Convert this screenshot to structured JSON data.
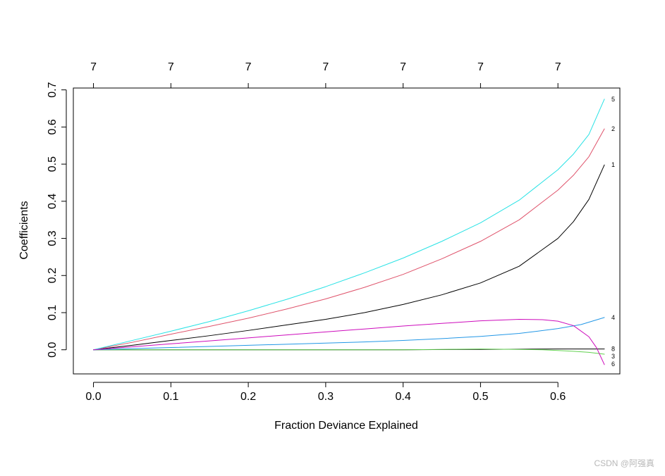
{
  "chart_data": {
    "type": "line",
    "title": "",
    "xlabel": "Fraction Deviance Explained",
    "ylabel": "Coefficients",
    "xlim": [
      -0.026,
      0.68
    ],
    "ylim": [
      -0.065,
      0.705
    ],
    "x_ticks": [
      0.0,
      0.1,
      0.2,
      0.3,
      0.4,
      0.5,
      0.6
    ],
    "x_tick_labels": [
      "0.0",
      "0.1",
      "0.2",
      "0.3",
      "0.4",
      "0.5",
      "0.6"
    ],
    "y_ticks": [
      0.0,
      0.1,
      0.2,
      0.3,
      0.4,
      0.5,
      0.6,
      0.7
    ],
    "y_tick_labels": [
      "0.0",
      "0.1",
      "0.2",
      "0.3",
      "0.4",
      "0.5",
      "0.6",
      "0.7"
    ],
    "top_axis": {
      "positions": [
        0.0,
        0.1,
        0.2,
        0.3,
        0.4,
        0.5,
        0.6
      ],
      "labels": [
        "7",
        "7",
        "7",
        "7",
        "7",
        "7",
        "7"
      ]
    },
    "grid": false,
    "series": [
      {
        "name": "1",
        "color": "#000000",
        "x": [
          0.0,
          0.05,
          0.1,
          0.15,
          0.2,
          0.25,
          0.3,
          0.35,
          0.4,
          0.45,
          0.5,
          0.55,
          0.6,
          0.62,
          0.64,
          0.66
        ],
        "values": [
          0.0,
          0.012,
          0.025,
          0.038,
          0.052,
          0.067,
          0.082,
          0.1,
          0.122,
          0.148,
          0.18,
          0.225,
          0.3,
          0.345,
          0.405,
          0.498
        ]
      },
      {
        "name": "2",
        "color": "#DF536B",
        "x": [
          0.0,
          0.05,
          0.1,
          0.15,
          0.2,
          0.25,
          0.3,
          0.35,
          0.4,
          0.45,
          0.5,
          0.55,
          0.6,
          0.62,
          0.64,
          0.66
        ],
        "values": [
          0.0,
          0.02,
          0.042,
          0.063,
          0.085,
          0.11,
          0.137,
          0.168,
          0.203,
          0.245,
          0.292,
          0.35,
          0.43,
          0.47,
          0.52,
          0.595
        ]
      },
      {
        "name": "3",
        "color": "#61D04F",
        "x": [
          0.0,
          0.1,
          0.2,
          0.3,
          0.4,
          0.45,
          0.5,
          0.55,
          0.58,
          0.6,
          0.62,
          0.64,
          0.66
        ],
        "values": [
          0.0,
          0.0,
          0.0,
          0.0,
          0.0,
          0.001,
          0.002,
          0.001,
          0.0,
          -0.002,
          -0.004,
          -0.007,
          -0.012
        ]
      },
      {
        "name": "4",
        "color": "#2297E6",
        "x": [
          0.0,
          0.05,
          0.1,
          0.15,
          0.2,
          0.25,
          0.3,
          0.35,
          0.4,
          0.45,
          0.5,
          0.55,
          0.6,
          0.63,
          0.66
        ],
        "values": [
          0.0,
          0.003,
          0.006,
          0.009,
          0.012,
          0.015,
          0.018,
          0.021,
          0.025,
          0.03,
          0.036,
          0.044,
          0.057,
          0.068,
          0.087
        ]
      },
      {
        "name": "5",
        "color": "#28E2E5",
        "x": [
          0.0,
          0.05,
          0.1,
          0.15,
          0.2,
          0.25,
          0.3,
          0.35,
          0.4,
          0.45,
          0.5,
          0.55,
          0.6,
          0.62,
          0.64,
          0.66
        ],
        "values": [
          0.0,
          0.025,
          0.05,
          0.076,
          0.105,
          0.136,
          0.17,
          0.207,
          0.247,
          0.292,
          0.342,
          0.403,
          0.485,
          0.527,
          0.58,
          0.675
        ]
      },
      {
        "name": "6",
        "color": "#CD0BBC",
        "x": [
          0.0,
          0.05,
          0.1,
          0.15,
          0.2,
          0.25,
          0.3,
          0.35,
          0.4,
          0.45,
          0.5,
          0.55,
          0.58,
          0.6,
          0.62,
          0.64,
          0.65,
          0.66
        ],
        "values": [
          0.0,
          0.008,
          0.016,
          0.024,
          0.032,
          0.04,
          0.048,
          0.056,
          0.064,
          0.071,
          0.078,
          0.082,
          0.081,
          0.077,
          0.065,
          0.035,
          0.005,
          -0.04
        ]
      },
      {
        "name": "8",
        "color": "#000000",
        "x": [
          0.0,
          0.2,
          0.4,
          0.5,
          0.6,
          0.66
        ],
        "values": [
          0.0,
          0.0,
          0.0,
          0.001,
          0.002,
          0.002
        ]
      }
    ],
    "end_labels": [
      {
        "name": "5",
        "y": 0.675
      },
      {
        "name": "2",
        "y": 0.595
      },
      {
        "name": "1",
        "y": 0.498
      },
      {
        "name": "4",
        "y": 0.087
      },
      {
        "name": "8",
        "y": 0.002
      },
      {
        "name": "3",
        "y": -0.018
      },
      {
        "name": "6",
        "y": -0.038
      }
    ]
  },
  "watermark": "CSDN @阿强真"
}
